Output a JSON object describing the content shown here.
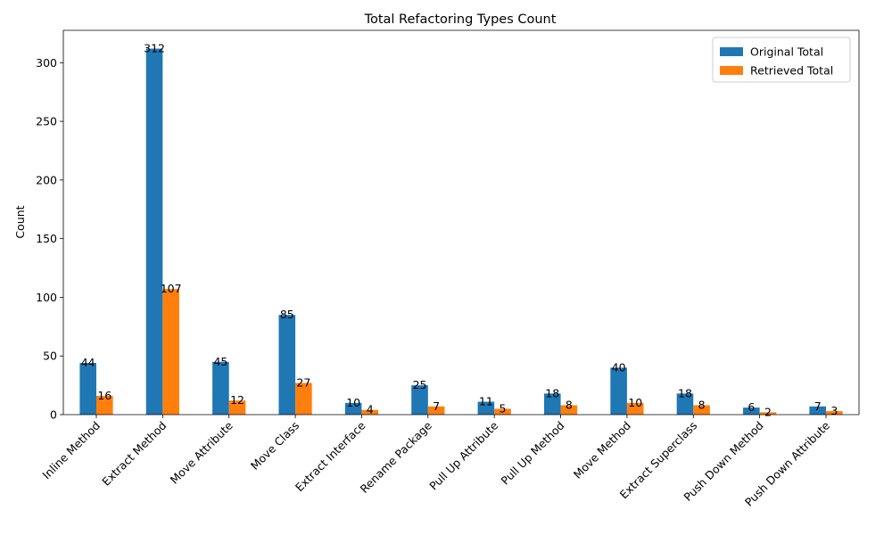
{
  "chart_data": {
    "type": "bar",
    "title": "Total Refactoring Types Count",
    "xlabel": "",
    "ylabel": "Count",
    "categories": [
      "Inline Method",
      "Extract Method",
      "Move Attribute",
      "Move Class",
      "Extract Interface",
      "Rename Package",
      "Pull Up Attribute",
      "Pull Up Method",
      "Move Method",
      "Extract Superclass",
      "Push Down Method",
      "Push Down Attribute"
    ],
    "series": [
      {
        "name": "Original Total",
        "color": "#1f77b4",
        "values": [
          44,
          312,
          45,
          85,
          10,
          25,
          11,
          18,
          40,
          18,
          6,
          7
        ]
      },
      {
        "name": "Retrieved Total",
        "color": "#ff7f0e",
        "values": [
          16,
          107,
          12,
          27,
          4,
          7,
          5,
          8,
          10,
          8,
          2,
          3
        ]
      }
    ],
    "ylim": [
      0,
      327.6
    ],
    "yticks": [
      0,
      50,
      100,
      150,
      200,
      250,
      300
    ],
    "xtick_rotation_deg": 45,
    "grid": false,
    "legend_position": "top-right"
  }
}
